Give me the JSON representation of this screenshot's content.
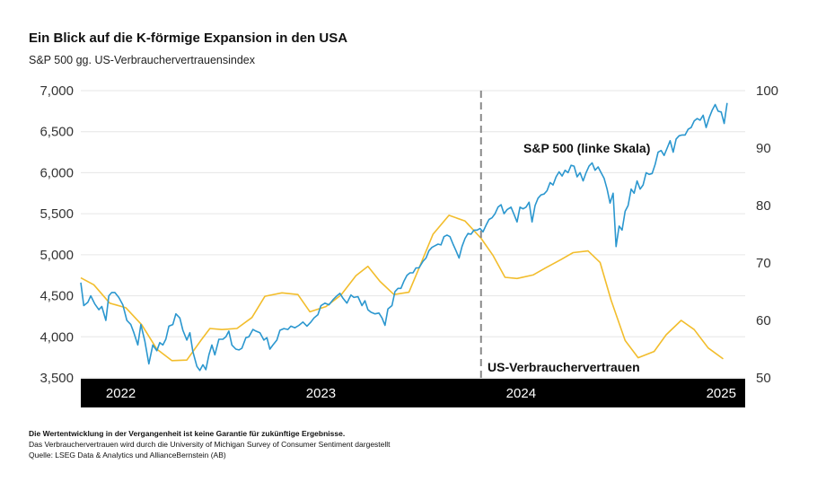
{
  "title": "Ein Blick auf die K-förmige Expansion in den USA",
  "subtitle": "S&P 500 gg. US-Verbrauchervertrauensindex",
  "footnotes": {
    "line1": "Die Wertentwicklung in der Vergangenheit ist keine Garantie für zukünftige Ergebnisse.",
    "line2": "Das Verbrauchervertrauen wird durch die University of Michigan Survey of Consumer Sentiment dargestellt",
    "line3": "Quelle: LSEG Data & Analytics und AllianceBernstein (AB)"
  },
  "colors": {
    "sp500": "#2b97cf",
    "sentiment": "#f2bd2c",
    "band": "#000000",
    "grid": "#e6e6e6",
    "divider": "#8a8a8a"
  },
  "chart_data": {
    "type": "line",
    "title": "Ein Blick auf die K-förmige Expansion in den USA",
    "x_range": [
      2021.95,
      2025.27
    ],
    "y_left": {
      "label": "S&P 500",
      "range": [
        3500,
        7000
      ],
      "ticks": [
        3500,
        4000,
        4500,
        5000,
        5500,
        6000,
        6500,
        7000
      ],
      "tick_labels": [
        "3,500",
        "4,000",
        "4,500",
        "5,000",
        "5,500",
        "6,000",
        "6,500",
        "7,000"
      ]
    },
    "y_right": {
      "label": "US-Verbrauchervertrauen",
      "range": [
        50,
        100
      ],
      "ticks": [
        50,
        60,
        70,
        80,
        90,
        100
      ],
      "tick_labels": [
        "50",
        "60",
        "70",
        "80",
        "90",
        "100"
      ]
    },
    "x_labels": [
      {
        "x": 2022.15,
        "label": "2022"
      },
      {
        "x": 2023.15,
        "label": "2023"
      },
      {
        "x": 2024.15,
        "label": "2024"
      },
      {
        "x": 2025.15,
        "label": "2025"
      }
    ],
    "divider_x": 2023.95,
    "annotations": {
      "sp500": "S&P 500 (linke Skala)",
      "sentiment": "US-Verbrauchervertrauen"
    },
    "series": [
      {
        "name": "S&P 500",
        "axis": "left",
        "points": [
          [
            2021.95,
            4660
          ],
          [
            2021.965,
            4380
          ],
          [
            2021.985,
            4420
          ],
          [
            2022.0,
            4500
          ],
          [
            2022.02,
            4400
          ],
          [
            2022.04,
            4330
          ],
          [
            2022.055,
            4370
          ],
          [
            2022.075,
            4200
          ],
          [
            2022.09,
            4500
          ],
          [
            2022.105,
            4540
          ],
          [
            2022.12,
            4540
          ],
          [
            2022.14,
            4480
          ],
          [
            2022.16,
            4390
          ],
          [
            2022.18,
            4200
          ],
          [
            2022.2,
            4150
          ],
          [
            2022.215,
            4050
          ],
          [
            2022.235,
            3900
          ],
          [
            2022.25,
            4150
          ],
          [
            2022.27,
            3950
          ],
          [
            2022.29,
            3670
          ],
          [
            2022.31,
            3900
          ],
          [
            2022.33,
            3830
          ],
          [
            2022.345,
            3930
          ],
          [
            2022.36,
            3900
          ],
          [
            2022.375,
            3970
          ],
          [
            2022.39,
            4130
          ],
          [
            2022.41,
            4150
          ],
          [
            2022.425,
            4280
          ],
          [
            2022.445,
            4230
          ],
          [
            2022.46,
            4080
          ],
          [
            2022.48,
            3960
          ],
          [
            2022.495,
            4050
          ],
          [
            2022.51,
            3820
          ],
          [
            2022.53,
            3640
          ],
          [
            2022.545,
            3590
          ],
          [
            2022.56,
            3660
          ],
          [
            2022.575,
            3600
          ],
          [
            2022.59,
            3780
          ],
          [
            2022.605,
            3900
          ],
          [
            2022.62,
            3780
          ],
          [
            2022.64,
            3970
          ],
          [
            2022.66,
            3970
          ],
          [
            2022.675,
            4000
          ],
          [
            2022.69,
            4070
          ],
          [
            2022.705,
            3900
          ],
          [
            2022.725,
            3850
          ],
          [
            2022.74,
            3840
          ],
          [
            2022.755,
            3860
          ],
          [
            2022.775,
            3990
          ],
          [
            2022.79,
            4000
          ],
          [
            2022.81,
            4090
          ],
          [
            2022.825,
            4070
          ],
          [
            2022.845,
            4050
          ],
          [
            2022.865,
            3960
          ],
          [
            2022.88,
            3990
          ],
          [
            2022.895,
            3850
          ],
          [
            2022.91,
            3900
          ],
          [
            2022.93,
            3960
          ],
          [
            2022.945,
            4080
          ],
          [
            2022.965,
            4100
          ],
          [
            2022.985,
            4090
          ],
          [
            2023.0,
            4130
          ],
          [
            2023.02,
            4110
          ],
          [
            2023.04,
            4140
          ],
          [
            2023.06,
            4180
          ],
          [
            2023.08,
            4130
          ],
          [
            2023.1,
            4180
          ],
          [
            2023.115,
            4230
          ],
          [
            2023.135,
            4270
          ],
          [
            2023.15,
            4380
          ],
          [
            2023.17,
            4410
          ],
          [
            2023.19,
            4390
          ],
          [
            2023.21,
            4450
          ],
          [
            2023.23,
            4500
          ],
          [
            2023.245,
            4530
          ],
          [
            2023.26,
            4470
          ],
          [
            2023.28,
            4410
          ],
          [
            2023.3,
            4510
          ],
          [
            2023.315,
            4480
          ],
          [
            2023.335,
            4490
          ],
          [
            2023.355,
            4380
          ],
          [
            2023.37,
            4440
          ],
          [
            2023.385,
            4330
          ],
          [
            2023.4,
            4300
          ],
          [
            2023.42,
            4280
          ],
          [
            2023.44,
            4290
          ],
          [
            2023.455,
            4230
          ],
          [
            2023.47,
            4140
          ],
          [
            2023.485,
            4340
          ],
          [
            2023.505,
            4380
          ],
          [
            2023.52,
            4550
          ],
          [
            2023.535,
            4590
          ],
          [
            2023.55,
            4590
          ],
          [
            2023.565,
            4680
          ],
          [
            2023.58,
            4750
          ],
          [
            2023.595,
            4780
          ],
          [
            2023.61,
            4780
          ],
          [
            2023.625,
            4840
          ],
          [
            2023.64,
            4840
          ],
          [
            2023.66,
            4920
          ],
          [
            2023.675,
            4960
          ],
          [
            2023.69,
            5050
          ],
          [
            2023.705,
            5090
          ],
          [
            2023.72,
            5110
          ],
          [
            2023.735,
            5130
          ],
          [
            2023.75,
            5120
          ],
          [
            2023.765,
            5220
          ],
          [
            2023.78,
            5240
          ],
          [
            2023.795,
            5220
          ],
          [
            2023.81,
            5130
          ],
          [
            2023.825,
            5050
          ],
          [
            2023.84,
            4960
          ],
          [
            2023.855,
            5100
          ],
          [
            2023.87,
            5200
          ],
          [
            2023.885,
            5260
          ],
          [
            2023.9,
            5250
          ],
          [
            2023.915,
            5300
          ],
          [
            2023.93,
            5300
          ],
          [
            2023.945,
            5320
          ],
          [
            2023.96,
            5280
          ],
          [
            2023.975,
            5360
          ],
          [
            2023.99,
            5430
          ],
          [
            2024.005,
            5450
          ],
          [
            2024.02,
            5500
          ],
          [
            2024.035,
            5580
          ],
          [
            2024.05,
            5610
          ],
          [
            2024.065,
            5500
          ],
          [
            2024.08,
            5550
          ],
          [
            2024.1,
            5580
          ],
          [
            2024.115,
            5490
          ],
          [
            2024.13,
            5400
          ],
          [
            2024.145,
            5580
          ],
          [
            2024.16,
            5560
          ],
          [
            2024.175,
            5580
          ],
          [
            2024.19,
            5640
          ],
          [
            2024.205,
            5400
          ],
          [
            2024.22,
            5600
          ],
          [
            2024.235,
            5690
          ],
          [
            2024.25,
            5730
          ],
          [
            2024.265,
            5740
          ],
          [
            2024.28,
            5780
          ],
          [
            2024.295,
            5880
          ],
          [
            2024.31,
            5850
          ],
          [
            2024.325,
            5950
          ],
          [
            2024.34,
            6010
          ],
          [
            2024.355,
            5960
          ],
          [
            2024.37,
            6030
          ],
          [
            2024.385,
            6000
          ],
          [
            2024.4,
            6090
          ],
          [
            2024.415,
            6080
          ],
          [
            2024.43,
            5950
          ],
          [
            2024.445,
            6000
          ],
          [
            2024.46,
            5900
          ],
          [
            2024.475,
            6000
          ],
          [
            2024.49,
            6080
          ],
          [
            2024.505,
            6120
          ],
          [
            2024.52,
            6030
          ],
          [
            2024.535,
            6070
          ],
          [
            2024.55,
            6000
          ],
          [
            2024.565,
            5930
          ],
          [
            2024.58,
            5800
          ],
          [
            2024.595,
            5630
          ],
          [
            2024.61,
            5750
          ],
          [
            2024.625,
            5100
          ],
          [
            2024.64,
            5350
          ],
          [
            2024.655,
            5300
          ],
          [
            2024.67,
            5530
          ],
          [
            2024.685,
            5600
          ],
          [
            2024.7,
            5800
          ],
          [
            2024.715,
            5750
          ],
          [
            2024.73,
            5900
          ],
          [
            2024.745,
            5800
          ],
          [
            2024.76,
            5850
          ],
          [
            2024.775,
            6000
          ],
          [
            2024.79,
            5980
          ],
          [
            2024.805,
            5990
          ],
          [
            2024.82,
            6100
          ],
          [
            2024.835,
            6250
          ],
          [
            2024.85,
            6270
          ],
          [
            2024.865,
            6210
          ],
          [
            2024.88,
            6300
          ],
          [
            2024.895,
            6390
          ],
          [
            2024.91,
            6250
          ],
          [
            2024.925,
            6410
          ],
          [
            2024.94,
            6450
          ],
          [
            2024.955,
            6460
          ],
          [
            2024.97,
            6460
          ],
          [
            2024.985,
            6530
          ],
          [
            2025.0,
            6550
          ],
          [
            2025.015,
            6630
          ],
          [
            2025.03,
            6660
          ],
          [
            2025.045,
            6640
          ],
          [
            2025.06,
            6700
          ],
          [
            2025.075,
            6550
          ],
          [
            2025.09,
            6670
          ],
          [
            2025.105,
            6760
          ],
          [
            2025.12,
            6830
          ],
          [
            2025.135,
            6750
          ],
          [
            2025.15,
            6740
          ],
          [
            2025.165,
            6600
          ],
          [
            2025.18,
            6850
          ]
        ]
      },
      {
        "name": "US-Verbrauchervertrauen",
        "axis": "right",
        "points": [
          [
            2021.95,
            67.4
          ],
          [
            2022.015,
            66.2
          ],
          [
            2022.095,
            63
          ],
          [
            2022.175,
            62.2
          ],
          [
            2022.255,
            59.2
          ],
          [
            2022.33,
            55
          ],
          [
            2022.405,
            53
          ],
          [
            2022.48,
            53.1
          ],
          [
            2022.55,
            56.5
          ],
          [
            2022.595,
            58.6
          ],
          [
            2022.655,
            58.4
          ],
          [
            2022.73,
            58.6
          ],
          [
            2022.805,
            60.5
          ],
          [
            2022.87,
            64.2
          ],
          [
            2022.955,
            64.8
          ],
          [
            2023.035,
            64.5
          ],
          [
            2023.095,
            61.5
          ],
          [
            2023.175,
            62.4
          ],
          [
            2023.25,
            64.4
          ],
          [
            2023.325,
            67.8
          ],
          [
            2023.385,
            69.4
          ],
          [
            2023.445,
            66.8
          ],
          [
            2023.515,
            64.5
          ],
          [
            2023.59,
            64.9
          ],
          [
            2023.64,
            69.1
          ],
          [
            2023.71,
            75
          ],
          [
            2023.79,
            78.3
          ],
          [
            2023.87,
            77.3
          ],
          [
            2023.95,
            74.3
          ],
          [
            2024.01,
            71.3
          ],
          [
            2024.07,
            67.5
          ],
          [
            2024.13,
            67.3
          ],
          [
            2024.21,
            67.9
          ],
          [
            2024.27,
            69.1
          ],
          [
            2024.35,
            70.6
          ],
          [
            2024.41,
            71.8
          ],
          [
            2024.485,
            72.1
          ],
          [
            2024.545,
            70.1
          ],
          [
            2024.6,
            63.5
          ],
          [
            2024.67,
            56.5
          ],
          [
            2024.735,
            53.5
          ],
          [
            2024.815,
            54.6
          ],
          [
            2024.875,
            57.5
          ],
          [
            2024.95,
            60
          ],
          [
            2025.015,
            58.4
          ],
          [
            2025.085,
            55.2
          ],
          [
            2025.16,
            53.3
          ]
        ]
      }
    ]
  }
}
